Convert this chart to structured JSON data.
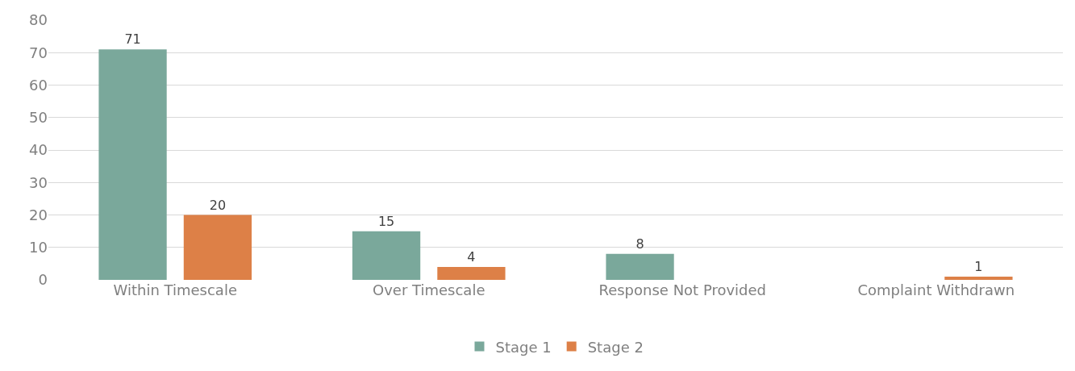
{
  "chart_data": {
    "type": "bar",
    "categories": [
      "Within Timescale",
      "Over Timescale",
      "Response Not Provided",
      "Complaint Withdrawn"
    ],
    "series": [
      {
        "name": "Stage 1",
        "color": "#7aa89b",
        "values": [
          71,
          15,
          8,
          null
        ]
      },
      {
        "name": "Stage 2",
        "color": "#dd8047",
        "values": [
          20,
          4,
          null,
          1
        ]
      }
    ],
    "ylim": [
      0,
      80
    ],
    "yticks": [
      0,
      10,
      20,
      30,
      40,
      50,
      60,
      70,
      80
    ],
    "grid": "y",
    "legend": "bottom",
    "data_labels": true
  }
}
